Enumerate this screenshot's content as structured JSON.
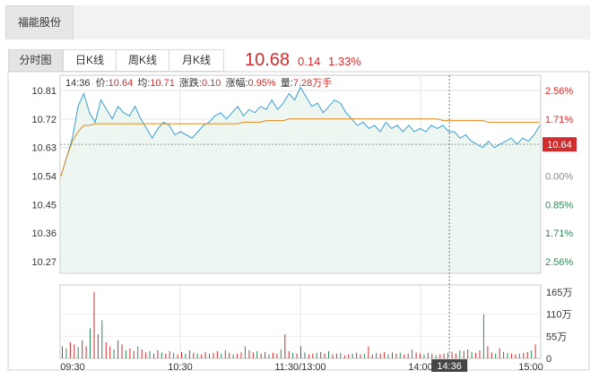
{
  "header": {
    "stock_tab": "福能股份"
  },
  "tabs": [
    {
      "label": "分时图",
      "active": true
    },
    {
      "label": "日K线",
      "active": false
    },
    {
      "label": "周K线",
      "active": false
    },
    {
      "label": "月K线",
      "active": false
    }
  ],
  "quote": {
    "price": "10.68",
    "change": "0.14",
    "change_pct": "1.33%"
  },
  "info_line": {
    "time": "14:36",
    "price_label": "价:",
    "price": "10.64",
    "avg_label": "均:",
    "avg": "10.71",
    "chg_label": "涨跌:",
    "chg": "0.10",
    "pct_label": "涨幅:",
    "pct": "0.95%",
    "vol_label": "量:",
    "vol": "7.28万手"
  },
  "colors": {
    "up": "#d02e2e",
    "down": "#2e8b57",
    "price_line": "#3a9fd0",
    "avg_line": "#e08a1e",
    "neutral": "#888888"
  },
  "chart_data": {
    "type": "line",
    "prev_close": 10.54,
    "y_ticks_left": [
      "10.81",
      "10.72",
      "10.63",
      "10.54",
      "10.45",
      "10.36",
      "10.27"
    ],
    "y_ticks_right": [
      "2.56%",
      "1.71%",
      "",
      "0.00%",
      "0.85%",
      "1.71%",
      "2.56%"
    ],
    "ylim": [
      10.27,
      10.81
    ],
    "current_price_tag": "10.64",
    "x_ticks": [
      "09:30",
      "10:30",
      "11:30/13:00",
      "14:00",
      "15:00"
    ],
    "cursor_time": "14:36",
    "cursor_index": 0.81,
    "volume_ticks": [
      "165万",
      "110万",
      "55万",
      "0"
    ],
    "volume_max": 165,
    "series": [
      {
        "kind": "price",
        "values": [
          10.54,
          10.6,
          10.66,
          10.76,
          10.8,
          10.74,
          10.71,
          10.78,
          10.75,
          10.72,
          10.76,
          10.74,
          10.73,
          10.76,
          10.72,
          10.69,
          10.66,
          10.69,
          10.71,
          10.7,
          10.67,
          10.68,
          10.67,
          10.66,
          10.68,
          10.7,
          10.71,
          10.73,
          10.74,
          10.72,
          10.74,
          10.76,
          10.73,
          10.75,
          10.74,
          10.76,
          10.75,
          10.78,
          10.75,
          10.77,
          10.8,
          10.78,
          10.82,
          10.79,
          10.76,
          10.77,
          10.74,
          10.76,
          10.78,
          10.77,
          10.74,
          10.72,
          10.7,
          10.71,
          10.69,
          10.7,
          10.68,
          10.71,
          10.69,
          10.7,
          10.68,
          10.7,
          10.68,
          10.69,
          10.68,
          10.7,
          10.69,
          10.7,
          10.68,
          10.68,
          10.66,
          10.67,
          10.65,
          10.64,
          10.63,
          10.65,
          10.63,
          10.64,
          10.65,
          10.66,
          10.64,
          10.66,
          10.65,
          10.67,
          10.7
        ]
      },
      {
        "kind": "avg",
        "values": [
          10.54,
          10.6,
          10.65,
          10.68,
          10.7,
          10.7,
          10.705,
          10.705,
          10.705,
          10.705,
          10.705,
          10.705,
          10.705,
          10.705,
          10.705,
          10.705,
          10.705,
          10.705,
          10.705,
          10.705,
          10.705,
          10.705,
          10.705,
          10.705,
          10.705,
          10.705,
          10.705,
          10.705,
          10.705,
          10.705,
          10.705,
          10.705,
          10.71,
          10.71,
          10.71,
          10.71,
          10.715,
          10.715,
          10.715,
          10.715,
          10.72,
          10.72,
          10.72,
          10.72,
          10.72,
          10.72,
          10.72,
          10.72,
          10.72,
          10.72,
          10.72,
          10.72,
          10.72,
          10.72,
          10.72,
          10.72,
          10.72,
          10.72,
          10.72,
          10.72,
          10.72,
          10.72,
          10.72,
          10.72,
          10.72,
          10.72,
          10.72,
          10.715,
          10.715,
          10.715,
          10.715,
          10.715,
          10.715,
          10.715,
          10.715,
          10.71,
          10.71,
          10.71,
          10.71,
          10.71,
          10.71,
          10.71,
          10.71,
          10.71,
          10.71
        ]
      },
      {
        "kind": "volume",
        "values": [
          30,
          25,
          40,
          35,
          28,
          45,
          30,
          75,
          165,
          60,
          95,
          40,
          30,
          22,
          45,
          35,
          20,
          25,
          18,
          30,
          22,
          15,
          18,
          12,
          20,
          15,
          12,
          18,
          14,
          10,
          16,
          12,
          20,
          14,
          12,
          10,
          16,
          12,
          14,
          18,
          12,
          20,
          14,
          10,
          12,
          15,
          30,
          20,
          15,
          18,
          12,
          16,
          10,
          14,
          12,
          22,
          60,
          18,
          14,
          12,
          30,
          15,
          10,
          12,
          14,
          16,
          12,
          18,
          10,
          12,
          14,
          8,
          10,
          12,
          14,
          10,
          12,
          30,
          10,
          14,
          12,
          16,
          10,
          15,
          12,
          14,
          10,
          12,
          22,
          15,
          12,
          10,
          14,
          12,
          8,
          10,
          12,
          14,
          16,
          12,
          20,
          18,
          22,
          16,
          14,
          20,
          110,
          30,
          15,
          12,
          25,
          16,
          14,
          12,
          10,
          12,
          14,
          16,
          20,
          35
        ]
      }
    ]
  }
}
